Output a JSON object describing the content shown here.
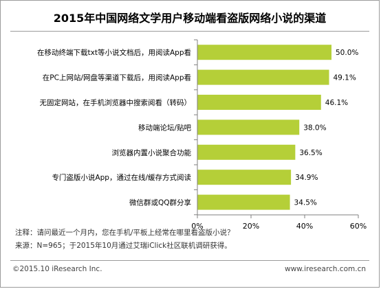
{
  "header": {
    "title": "2015年中国网络文学用户移动端看盗版网络小说的渠道"
  },
  "notes": {
    "note": "注释：请问最近一个月内，您在手机/平板上经常在哪里看盗版小说？",
    "source": "来源：N=965；于2015年10月通过艾瑞iClick社区联机调研获得。"
  },
  "footer": {
    "copyright": "©2015.10 iResearch Inc.",
    "website": "www.iresearch.com.cn"
  },
  "colors": {
    "bar": "#b5cf38",
    "axis": "#7f7f7f"
  },
  "chart_data": {
    "type": "bar",
    "orientation": "horizontal",
    "title": "2015年中国网络文学用户移动端看盗版网络小说的渠道",
    "categories": [
      "在移动终端下载txt等小说文档后，用阅读App看",
      "在PC上网站/网盘等渠道下载后，用阅读App看",
      "无固定网站，在手机浏览器中搜索阅看（转码）",
      "移动端论坛/贴吧",
      "浏览器内置小说聚合功能",
      "专门盗版小说App，通过在线/缓存方式阅读",
      "微信群或QQ群分享"
    ],
    "values": [
      50.0,
      49.1,
      46.1,
      38.0,
      36.5,
      34.9,
      34.5
    ],
    "value_labels": [
      "50.0%",
      "49.1%",
      "46.1%",
      "38.0%",
      "36.5%",
      "34.9%",
      "34.5%"
    ],
    "xlim": [
      0,
      60
    ],
    "xticks": [
      "0%",
      "20%",
      "40%",
      "60%"
    ],
    "grid": false
  }
}
